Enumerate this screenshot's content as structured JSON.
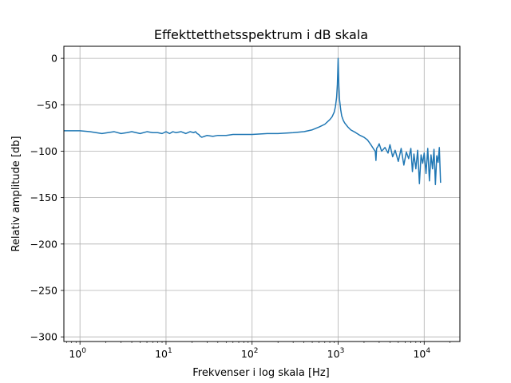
{
  "chart_data": {
    "type": "line",
    "title": "Effekttetthetsspektrum i dB skala",
    "xlabel": "Frekvenser i log skala [Hz]",
    "ylabel": "Relativ amplitude [db]",
    "xscale": "log",
    "xlim": [
      0.65,
      26000
    ],
    "ylim": [
      -305,
      13
    ],
    "grid": true,
    "legend": "none",
    "line_color": "#1f77b4",
    "x_ticks": [
      {
        "value": 1,
        "base": "10",
        "exp": "0"
      },
      {
        "value": 10,
        "base": "10",
        "exp": "1"
      },
      {
        "value": 100,
        "base": "10",
        "exp": "2"
      },
      {
        "value": 1000,
        "base": "10",
        "exp": "3"
      },
      {
        "value": 10000,
        "base": "10",
        "exp": "4"
      }
    ],
    "y_ticks": [
      {
        "value": 0,
        "label": "0"
      },
      {
        "value": -50,
        "label": "−50"
      },
      {
        "value": -100,
        "label": "−100"
      },
      {
        "value": -150,
        "label": "−150"
      },
      {
        "value": -200,
        "label": "−200"
      },
      {
        "value": -250,
        "label": "−250"
      },
      {
        "value": -300,
        "label": "−300"
      }
    ],
    "series": [
      {
        "x": [
          0.65,
          1.0,
          1.3,
          1.8,
          2.5,
          3.0,
          3.5,
          4.0,
          5.0,
          6.0,
          7.0,
          8.0,
          9.0,
          10,
          11,
          12,
          13,
          15,
          17,
          19,
          21,
          22,
          23,
          24,
          25,
          26,
          28,
          30,
          35,
          40,
          50,
          60,
          80,
          100,
          150,
          200,
          300,
          400,
          500,
          600,
          700,
          800,
          850,
          900,
          930,
          960,
          980,
          990,
          1000,
          1010,
          1020,
          1040,
          1070,
          1100,
          1150,
          1200,
          1300,
          1400,
          1600,
          1800,
          2000,
          2200,
          2400,
          2600,
          2700,
          2750,
          2800,
          2900,
          3000,
          3200,
          3500,
          3800,
          4000,
          4300,
          4600,
          5000,
          5400,
          5800,
          6200,
          6600,
          7000,
          7300,
          7600,
          8000,
          8400,
          8800,
          9200,
          9600,
          10000,
          10500,
          11000,
          11500,
          12000,
          12500,
          13000,
          13500,
          14000,
          14500,
          15000,
          15500
        ],
        "y": [
          -78,
          -78,
          -79,
          -81,
          -79,
          -81,
          -80,
          -79,
          -81,
          -79,
          -80,
          -80,
          -81,
          -79,
          -81,
          -79,
          -80,
          -79,
          -81,
          -79,
          -80,
          -79,
          -81,
          -82,
          -84,
          -85,
          -84,
          -83,
          -84,
          -83,
          -83,
          -82,
          -82,
          -82,
          -81,
          -81,
          -80,
          -79,
          -77,
          -74,
          -71,
          -66,
          -63,
          -58,
          -52,
          -42,
          -28,
          -15,
          0,
          -15,
          -30,
          -45,
          -55,
          -62,
          -67,
          -70,
          -74,
          -77,
          -80,
          -83,
          -85,
          -88,
          -93,
          -98,
          -100,
          -110,
          -97,
          -95,
          -92,
          -100,
          -96,
          -102,
          -93,
          -106,
          -99,
          -111,
          -97,
          -115,
          -101,
          -108,
          -97,
          -122,
          -103,
          -119,
          -99,
          -135,
          -104,
          -113,
          -102,
          -124,
          -97,
          -132,
          -104,
          -119,
          -98,
          -136,
          -105,
          -112,
          -96,
          -134
        ]
      }
    ]
  }
}
